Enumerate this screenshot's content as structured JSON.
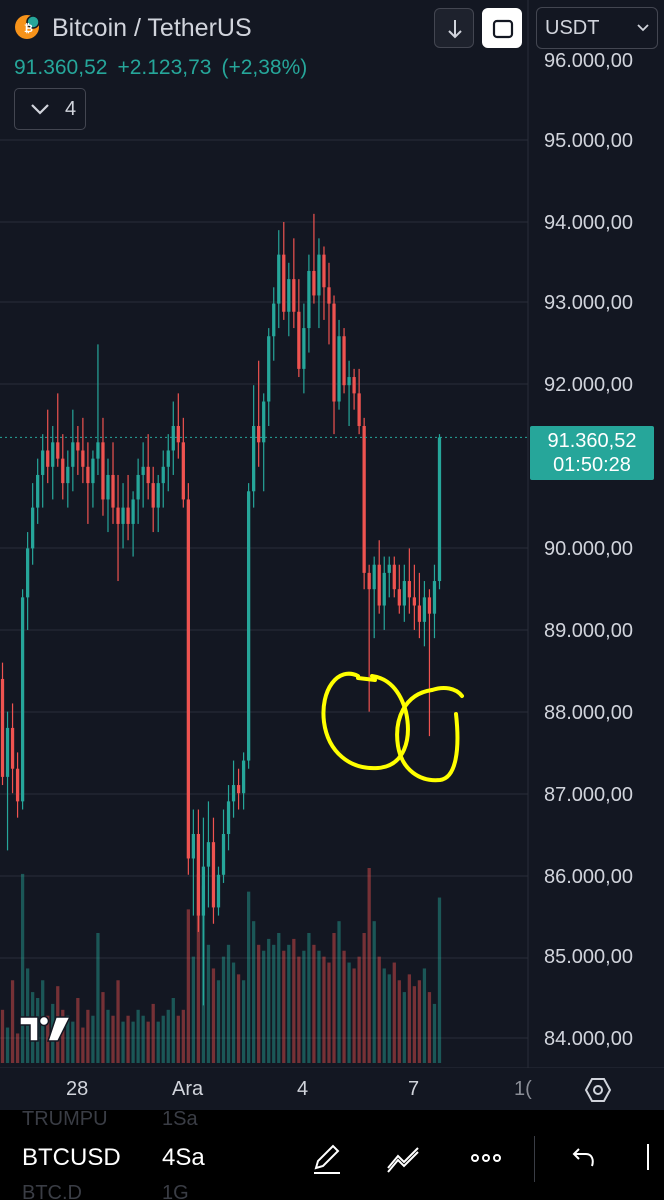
{
  "header": {
    "title": "Bitcoin / TetherUS",
    "price": "91.360,52",
    "change": "+2.123,73",
    "change_pct": "(+2,38%)",
    "indicator_count": "4",
    "currency": "USDT"
  },
  "price_axis": {
    "ticks": [
      "96.000,00",
      "95.000,00",
      "94.000,00",
      "93.000,00",
      "92.000,00",
      "90.000,00",
      "89.000,00",
      "88.000,00",
      "87.000,00",
      "86.000,00",
      "85.000,00",
      "84.000,00"
    ],
    "last_price": "91.360,52",
    "countdown": "01:50:28"
  },
  "time_axis": {
    "ticks": [
      "28",
      "Ara",
      "4",
      "7",
      "1("
    ]
  },
  "toolbar": {
    "symbol": "BTCUSD",
    "interval": "4Sa",
    "ghost_above_symbol": "TRUMPU",
    "ghost_above_interval": "1Sa",
    "ghost_below_symbol": "BTC.D",
    "ghost_below_interval": "1G"
  },
  "colors": {
    "background": "#131722",
    "up": "#26a69a",
    "down": "#ef5350",
    "annotation": "#ffff00"
  },
  "chart_data": {
    "type": "candlestick",
    "series_name": "BTC/USDT 4h",
    "y_range": [
      83500,
      96300
    ],
    "last_price": 91360.52,
    "x_labels": [
      "28",
      "Ara",
      "4",
      "7"
    ],
    "candles": [
      [
        88400,
        88600,
        87100,
        87200
      ],
      [
        87200,
        88000,
        86300,
        87800
      ],
      [
        87800,
        88100,
        87000,
        87300
      ],
      [
        87300,
        87500,
        86700,
        86900
      ],
      [
        86900,
        89500,
        86800,
        89400
      ],
      [
        89400,
        90200,
        89000,
        90000
      ],
      [
        90000,
        90800,
        89800,
        90500
      ],
      [
        90500,
        91100,
        90300,
        90900
      ],
      [
        90900,
        91400,
        90500,
        91200
      ],
      [
        91200,
        91700,
        90800,
        91000
      ],
      [
        91000,
        91500,
        90600,
        91300
      ],
      [
        91300,
        91900,
        91000,
        91100
      ],
      [
        91100,
        91400,
        90600,
        90800
      ],
      [
        90800,
        91200,
        90500,
        91000
      ],
      [
        91000,
        91700,
        90700,
        91300
      ],
      [
        91300,
        91500,
        90900,
        91200
      ],
      [
        91200,
        91600,
        90800,
        91000
      ],
      [
        91000,
        91300,
        90300,
        90800
      ],
      [
        90800,
        91200,
        90500,
        91100
      ],
      [
        91100,
        92500,
        90900,
        91300
      ],
      [
        91300,
        91600,
        90400,
        90600
      ],
      [
        90600,
        91100,
        90200,
        90900
      ],
      [
        90900,
        91300,
        90300,
        90500
      ],
      [
        90500,
        90900,
        89600,
        90300
      ],
      [
        90300,
        90800,
        90000,
        90500
      ],
      [
        90500,
        90900,
        90100,
        90300
      ],
      [
        90300,
        90700,
        89900,
        90600
      ],
      [
        90600,
        91100,
        90300,
        90900
      ],
      [
        90900,
        91300,
        90500,
        91000
      ],
      [
        91000,
        91400,
        90600,
        90800
      ],
      [
        90800,
        91000,
        90200,
        90500
      ],
      [
        90500,
        90900,
        90200,
        90800
      ],
      [
        90800,
        91200,
        90500,
        91000
      ],
      [
        91000,
        91400,
        90700,
        91200
      ],
      [
        91200,
        91800,
        90900,
        91500
      ],
      [
        91500,
        91900,
        91100,
        91300
      ],
      [
        91300,
        91600,
        90500,
        90600
      ],
      [
        90600,
        90800,
        86000,
        86200
      ],
      [
        86200,
        86800,
        85500,
        86500
      ],
      [
        86500,
        86800,
        85300,
        85500
      ],
      [
        85500,
        86700,
        84400,
        86100
      ],
      [
        86100,
        86900,
        85600,
        86400
      ],
      [
        86400,
        86700,
        85400,
        85600
      ],
      [
        85600,
        86100,
        85500,
        86000
      ],
      [
        86000,
        86800,
        85900,
        86500
      ],
      [
        86500,
        87100,
        86300,
        86900
      ],
      [
        86900,
        87400,
        86700,
        87100
      ],
      [
        87100,
        87300,
        86800,
        87000
      ],
      [
        87000,
        87500,
        86800,
        87400
      ],
      [
        87400,
        90800,
        87300,
        90700
      ],
      [
        90700,
        92000,
        90500,
        91500
      ],
      [
        91500,
        92300,
        91000,
        91300
      ],
      [
        91300,
        91900,
        90700,
        91800
      ],
      [
        91800,
        92700,
        91500,
        92600
      ],
      [
        92600,
        93200,
        92300,
        93000
      ],
      [
        93000,
        93900,
        92700,
        93600
      ],
      [
        93600,
        94000,
        92800,
        92900
      ],
      [
        92900,
        93500,
        92600,
        93300
      ],
      [
        93300,
        93800,
        92700,
        92900
      ],
      [
        92900,
        93300,
        92100,
        92200
      ],
      [
        92200,
        93000,
        91900,
        92700
      ],
      [
        92700,
        93600,
        92400,
        93400
      ],
      [
        93400,
        94100,
        93000,
        93100
      ],
      [
        93100,
        93800,
        92700,
        93600
      ],
      [
        93600,
        93700,
        92800,
        93200
      ],
      [
        93200,
        93500,
        92500,
        93000
      ],
      [
        93000,
        93100,
        91400,
        91800
      ],
      [
        91800,
        92800,
        91700,
        92600
      ],
      [
        92600,
        92700,
        91900,
        92000
      ],
      [
        92000,
        92300,
        91500,
        92100
      ],
      [
        92100,
        92200,
        91700,
        91900
      ],
      [
        91900,
        92200,
        91400,
        91500
      ],
      [
        91500,
        91600,
        89500,
        89700
      ],
      [
        89700,
        89800,
        88000,
        89500
      ],
      [
        89500,
        89900,
        88900,
        89800
      ],
      [
        89800,
        90100,
        89200,
        89300
      ],
      [
        89300,
        89900,
        89000,
        89700
      ],
      [
        89700,
        89900,
        89400,
        89800
      ],
      [
        89800,
        89900,
        89400,
        89500
      ],
      [
        89500,
        89800,
        89200,
        89300
      ],
      [
        89300,
        89800,
        89100,
        89600
      ],
      [
        89600,
        90000,
        89200,
        89400
      ],
      [
        89400,
        89800,
        89000,
        89300
      ],
      [
        89300,
        89700,
        88900,
        89100
      ],
      [
        89100,
        89600,
        88800,
        89400
      ],
      [
        89400,
        89500,
        87700,
        89200
      ],
      [
        89200,
        89800,
        88900,
        89600
      ],
      [
        89600,
        91400,
        89500,
        91360
      ]
    ],
    "volume_bars": [
      45,
      30,
      70,
      25,
      160,
      80,
      60,
      55,
      70,
      40,
      50,
      65,
      45,
      40,
      35,
      55,
      30,
      45,
      40,
      110,
      60,
      45,
      40,
      70,
      35,
      40,
      35,
      45,
      40,
      35,
      50,
      35,
      40,
      45,
      55,
      40,
      45,
      130,
      90,
      160,
      150,
      100,
      80,
      70,
      90,
      100,
      85,
      75,
      70,
      145,
      120,
      100,
      95,
      105,
      100,
      110,
      95,
      100,
      105,
      90,
      95,
      110,
      100,
      95,
      90,
      85,
      110,
      120,
      95,
      85,
      80,
      90,
      110,
      165,
      120,
      90,
      80,
      75,
      85,
      70,
      60,
      75,
      65,
      70,
      80,
      60,
      50,
      140
    ]
  }
}
